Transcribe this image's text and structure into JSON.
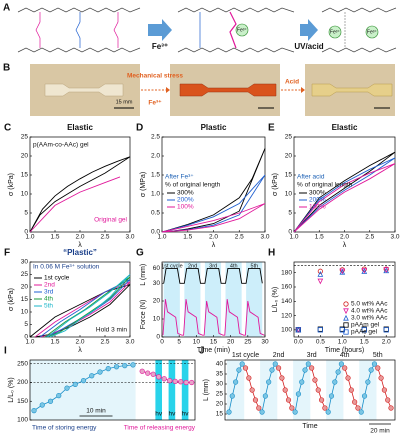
{
  "panels": {
    "A": {
      "label": "A",
      "arrow_labels": [
        "Fe³⁺",
        "UV/acid"
      ],
      "ion_labels": [
        "Fe³⁺",
        "Fe³⁺",
        "Fe³⁺"
      ]
    },
    "B": {
      "label": "B",
      "texts": [
        "Mechanical stress",
        "Fe³⁺",
        "Acid",
        "15 mm"
      ]
    }
  },
  "chart_data": [
    {
      "panel": "C",
      "type": "line",
      "title": "Elastic",
      "xlabel": "λ",
      "ylabel": "σ (kPa)",
      "xlim": [
        1,
        3
      ],
      "ylim": [
        0,
        25
      ],
      "xticks": [
        {
          "value": 1,
          "label": "1.0"
        },
        1.5,
        {
          "value": 2,
          "label": "2.0"
        },
        2.5,
        {
          "value": 3,
          "label": "3.0"
        }
      ],
      "yticks": [
        0,
        5,
        10,
        15,
        20,
        25
      ],
      "series": [
        {
          "name": "p(AAm-co-AAc) gel",
          "color": "#000000",
          "x": [
            1,
            1.25,
            1.5,
            1.75,
            2,
            2.25,
            2.5,
            2.75,
            3,
            2.5,
            2,
            1.5,
            1.2,
            1
          ],
          "values": [
            0,
            6,
            9.5,
            12,
            14,
            15.8,
            17.3,
            18.6,
            19.8,
            15.5,
            12,
            8,
            4.5,
            0
          ]
        },
        {
          "name": "Original gel",
          "color": "#e0189a",
          "x": [
            1,
            1.5,
            2,
            2.5,
            2.8
          ],
          "values": [
            0,
            7,
            10.5,
            13,
            14.5
          ]
        }
      ]
    },
    {
      "panel": "D",
      "type": "line",
      "title": "Plastic",
      "xlabel": "λ",
      "ylabel": "σ (MPa)",
      "xlim": [
        1,
        3
      ],
      "ylim": [
        0,
        2.5
      ],
      "xticks": [
        {
          "value": 1,
          "label": "1.0"
        },
        1.5,
        {
          "value": 2,
          "label": "2.0"
        },
        2.5,
        {
          "value": 3,
          "label": "3.0"
        }
      ],
      "yticks": [
        {
          "value": 0,
          "label": "0.0"
        },
        0.5,
        {
          "value": 1,
          "label": "1.0"
        },
        1.5,
        {
          "value": 2,
          "label": "2.0"
        },
        2.5
      ],
      "annotations": [
        "After Fe³⁺",
        "% of original length"
      ],
      "series": [
        {
          "name": "300%",
          "color": "#000000",
          "x": [
            1,
            1.5,
            2,
            2.5,
            2.75,
            3,
            2.5,
            2,
            1.5,
            1.2,
            1
          ],
          "values": [
            0,
            0.2,
            0.45,
            0.9,
            1.4,
            2.2,
            0.55,
            0.22,
            0.08,
            0.02,
            0
          ]
        },
        {
          "name": "200%",
          "color": "#1f5fd0",
          "x": [
            1,
            1.5,
            2,
            2.5,
            3,
            2.5,
            2,
            1.5,
            1
          ],
          "values": [
            0,
            0.18,
            0.4,
            0.75,
            1.5,
            0.45,
            0.18,
            0.06,
            0
          ]
        },
        {
          "name": "100%",
          "color": "#e0189a",
          "x": [
            1,
            1.5,
            2,
            2.5,
            3,
            2.5,
            2,
            1.5,
            1
          ],
          "values": [
            0,
            0.15,
            0.3,
            0.5,
            0.75,
            0.35,
            0.15,
            0.05,
            0
          ]
        }
      ]
    },
    {
      "panel": "E",
      "type": "line",
      "title": "Elastic",
      "xlabel": "λ",
      "ylabel": "σ (kPa)",
      "xlim": [
        1,
        3
      ],
      "ylim": [
        0,
        25
      ],
      "xticks": [
        {
          "value": 1,
          "label": "1.0"
        },
        1.5,
        {
          "value": 2,
          "label": "2.0"
        },
        2.5,
        {
          "value": 3,
          "label": "3.0"
        }
      ],
      "yticks": [
        0,
        5,
        10,
        15,
        20,
        25
      ],
      "annotations": [
        "After acid",
        "% of original length"
      ],
      "series": [
        {
          "name": "300%",
          "color": "#000000",
          "x": [
            1,
            1.5,
            2,
            2.5,
            3,
            2.5,
            2,
            1.5,
            1
          ],
          "values": [
            0,
            9,
            13.5,
            17.5,
            21,
            16,
            11.5,
            7,
            0
          ]
        },
        {
          "name": "200%",
          "color": "#1f5fd0",
          "x": [
            1,
            1.5,
            2,
            2.5,
            3,
            2.5,
            2,
            1.5,
            1
          ],
          "values": [
            0,
            8.5,
            13,
            16.5,
            19.5,
            15,
            11,
            6.5,
            0
          ]
        },
        {
          "name": "100%",
          "color": "#e0189a",
          "x": [
            1,
            1.5,
            2,
            2.5,
            3,
            2.5,
            2,
            1.5,
            1
          ],
          "values": [
            0,
            8,
            12.5,
            15.5,
            18,
            14,
            10.5,
            6,
            0
          ]
        }
      ]
    },
    {
      "panel": "F",
      "type": "line",
      "title": "“Plastic”",
      "xlabel": "λ",
      "ylabel": "σ (kPa)",
      "xlim": [
        1,
        3
      ],
      "ylim": [
        0,
        30
      ],
      "xticks": [
        {
          "value": 1,
          "label": "1.0"
        },
        1.5,
        {
          "value": 2,
          "label": "2.0"
        },
        2.5,
        {
          "value": 3,
          "label": "3.0"
        }
      ],
      "yticks": [
        0,
        5,
        10,
        15,
        20,
        25,
        30
      ],
      "annotations": [
        "In 0.06 M Fe³⁺ solution",
        "Hold 3 min"
      ],
      "series": [
        {
          "name": "1st cycle",
          "color": "#000000",
          "x": [
            1,
            1.5,
            2,
            2.5,
            3,
            2.6,
            2.2,
            1.8,
            1.4,
            1.1
          ],
          "values": [
            0,
            8,
            13,
            18,
            21,
            13,
            8,
            4,
            1,
            0
          ]
        },
        {
          "name": "2nd",
          "color": "#e0189a",
          "x": [
            1.1,
            1.5,
            2,
            2.5,
            3,
            2.6,
            2.2,
            1.8,
            1.4,
            1.2
          ],
          "values": [
            0,
            6,
            12,
            18,
            22,
            14,
            9,
            4.5,
            1,
            0
          ]
        },
        {
          "name": "3rd",
          "color": "#1f5fd0",
          "x": [
            1.2,
            1.6,
            2,
            2.5,
            3,
            2.6,
            2.2,
            1.8,
            1.5,
            1.3
          ],
          "values": [
            0,
            6,
            11,
            18,
            23,
            15,
            9.5,
            5,
            1.5,
            0
          ]
        },
        {
          "name": "4th",
          "color": "#1a9a3a",
          "x": [
            1.3,
            1.7,
            2.1,
            2.5,
            3,
            2.6,
            2.2,
            1.9,
            1.6,
            1.35
          ],
          "values": [
            0,
            6,
            11,
            17,
            24,
            15.5,
            10,
            6,
            2,
            0
          ]
        },
        {
          "name": "5th",
          "color": "#19b5c8",
          "x": [
            1.35,
            1.8,
            2.2,
            2.6,
            3,
            2.6,
            2.3,
            2,
            1.7,
            1.4
          ],
          "values": [
            0,
            7,
            12,
            18,
            25,
            16,
            11,
            7,
            2.5,
            0
          ]
        }
      ]
    },
    {
      "panel": "G",
      "type": "line",
      "xlabel": "Time (min)",
      "ylabel": "Force (N)",
      "y2label": "L (mm)",
      "xlim": [
        0,
        30
      ],
      "ylim": [
        0,
        25
      ],
      "y2lim": [
        20,
        70
      ],
      "xticks": [
        0,
        5,
        10,
        15,
        20,
        25,
        30
      ],
      "yticks": [
        0,
        10,
        20
      ],
      "y2ticks": [
        30,
        60
      ],
      "cycle_labels": [
        "1st cycle",
        "2nd",
        "3rd",
        "4th",
        "5th"
      ],
      "series": [
        {
          "color": "#000000",
          "axis": "y2",
          "x": [
            0.5,
            1.2,
            4.5,
            5.2,
            6.5,
            7.2,
            10.5,
            11.2,
            12.5,
            13.2,
            16.5,
            17.2,
            18.5,
            19.2,
            22.5,
            23.2,
            24.5,
            25.2,
            28.5,
            29.2
          ],
          "values": [
            30,
            60,
            60,
            30,
            30,
            60,
            60,
            30,
            30,
            60,
            60,
            30,
            30,
            60,
            60,
            30,
            30,
            60,
            60,
            30
          ]
        },
        {
          "color": "#e0189a",
          "x": [
            0.3,
            1,
            1.6,
            4,
            4.6,
            5.8,
            6.3,
            7,
            7.6,
            10,
            10.6,
            11.8,
            12.3,
            13,
            13.6,
            16,
            16.6,
            17.8,
            18.3,
            19,
            19.6,
            22,
            22.6,
            23.8,
            24.3,
            25,
            25.6,
            28,
            28.6,
            29.8
          ],
          "values": [
            1,
            21,
            14,
            11,
            2,
            1,
            1,
            21,
            14,
            11,
            2,
            1,
            1,
            20,
            14,
            11,
            2,
            1,
            1,
            21,
            14,
            11,
            2,
            1,
            1,
            20,
            14,
            11,
            2,
            1
          ]
        }
      ]
    },
    {
      "panel": "H",
      "type": "scatter",
      "xlabel": "Time (hours)",
      "ylabel": "L/L₀ (%)",
      "xlim": [
        -0.1,
        2.2
      ],
      "ylim": [
        90,
        195
      ],
      "hlines": [
        190
      ],
      "xticks": [
        {
          "value": 0,
          "label": "0.0"
        },
        0.5,
        {
          "value": 1,
          "label": "1.0"
        },
        1.5,
        {
          "value": 2,
          "label": "2.0"
        }
      ],
      "yticks": [
        100,
        120,
        140,
        160,
        180
      ],
      "x": [
        0,
        0.5,
        1,
        1.5,
        2
      ],
      "series": [
        {
          "name": "5.0 wt% AAc",
          "color": "#d42020",
          "marker": "circle",
          "values": [
            100,
            182,
            184,
            185,
            185
          ]
        },
        {
          "name": "4.0 wt% AAc",
          "color": "#e0189a",
          "marker": "down-triangle",
          "values": [
            100,
            168,
            182,
            183,
            184
          ]
        },
        {
          "name": "3.0 wt% AAc",
          "color": "#1f5fd0",
          "marker": "triangle",
          "values": [
            100,
            178,
            181,
            182,
            183
          ]
        },
        {
          "name": "pAAm gel",
          "color": "#000000",
          "marker": "square",
          "values": [
            100,
            101,
            101,
            101,
            101
          ]
        },
        {
          "name": "pAAc gel",
          "color": "#1f5fd0",
          "marker": "square",
          "values": [
            100,
            100,
            100,
            100,
            100
          ]
        }
      ]
    },
    {
      "panel": "I",
      "type": "line",
      "ylabel": "L/L₀ (%)",
      "ylim": [
        100,
        260
      ],
      "yticks": [
        100,
        150,
        200,
        250
      ],
      "hlines": [
        250,
        200
      ],
      "annotations": [
        "10 min",
        "hv",
        "hv",
        "hv",
        "Time of storing energy",
        "Time of releasing energy"
      ],
      "series": [
        {
          "color": "#1a8fc9",
          "values": [
            125,
            140,
            150,
            165,
            185,
            195,
            205,
            218,
            228,
            237,
            242,
            245,
            247
          ]
        },
        {
          "color": "#e0189a",
          "values": [
            230,
            225,
            222,
            215,
            210,
            205,
            203,
            202,
            200,
            200
          ]
        }
      ]
    },
    {
      "panel": "J",
      "type": "line",
      "xlabel": "Time",
      "ylabel": "L (mm)",
      "ylim": [
        12,
        42
      ],
      "yticks": [
        15,
        20,
        25,
        30,
        35,
        40
      ],
      "cycle_labels": [
        "1st cycle",
        "2nd",
        "3rd",
        "4th",
        "5th"
      ],
      "annotations": [
        "20 min"
      ],
      "series": [
        {
          "color": "#1a8fc9",
          "values": [
            16,
            24,
            31,
            37,
            40,
            16,
            24,
            31,
            37,
            40,
            16,
            25,
            31,
            37,
            40,
            16,
            24,
            31,
            36,
            40,
            16,
            24,
            31,
            37,
            40
          ]
        },
        {
          "color": "#d42020",
          "values": [
            38,
            33,
            27,
            22,
            18,
            38,
            33,
            27,
            22,
            18,
            38,
            32,
            27,
            22,
            18,
            38,
            33,
            27,
            21,
            18,
            38,
            33,
            27,
            22,
            18
          ]
        }
      ]
    }
  ]
}
